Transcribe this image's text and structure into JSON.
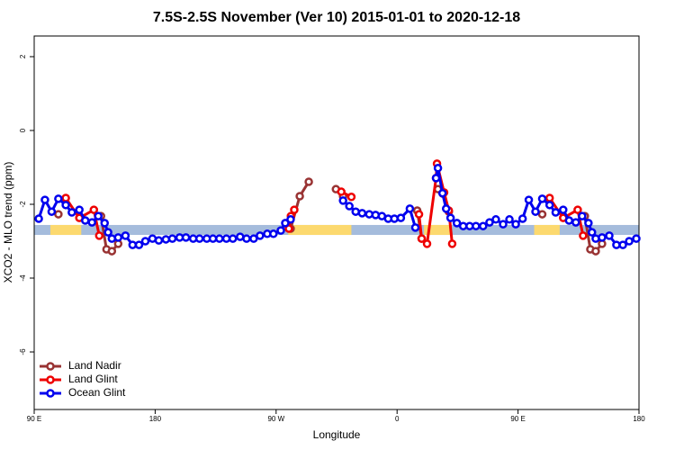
{
  "chart_data": {
    "type": "line",
    "title": "7.5S-2.5S November (Ver 10)   2015-01-01 to 2020-12-18",
    "x_label": "Longitude",
    "y_label": "XCO2 - MLO trend (ppm)",
    "xlim": [
      90,
      540
    ],
    "ylim": [
      -7.56,
      2.56
    ],
    "xticks": [
      {
        "value": 90,
        "label": "90 E"
      },
      180,
      {
        "value": 270,
        "label": "90 W"
      },
      {
        "value": 360,
        "label": "0"
      },
      {
        "value": 450,
        "label": "90 E"
      },
      {
        "value": 540,
        "label": "180"
      }
    ],
    "yticks": [
      2,
      0,
      -2,
      -4,
      -6
    ],
    "band": [
      -2.83,
      -2.56
    ],
    "band_color": "#a5bcdc",
    "land_spans": [
      [
        102,
        125
      ],
      [
        279,
        326
      ],
      [
        380,
        400
      ],
      [
        462,
        481
      ]
    ],
    "land_color": "#fcd96f",
    "legend": "bottom-left",
    "series": [
      {
        "name": "Land Nadir",
        "color": "#993333",
        "x": [
          108,
          110,
          139.7,
          143.8,
          147.8,
          152.5,
          200,
          280.8,
          287.6,
          294.3,
          300,
          314.5,
          319.8,
          350,
          375,
          378.3,
          385,
          390.4,
          394,
          398.5,
          420,
          468,
          470,
          499.7,
          503.8,
          507.8,
          512.5
        ],
        "values": [
          -2.27,
          null,
          -2.32,
          -3.22,
          -3.27,
          -3.07,
          null,
          -2.66,
          -1.78,
          -1.39,
          null,
          -1.59,
          -1.78,
          null,
          -2.17,
          -2.93,
          null,
          -1.59,
          -1.71,
          -2.2,
          null,
          -2.27,
          null,
          -2.32,
          -3.22,
          -3.27,
          -3.07
        ]
      },
      {
        "name": "Land Glint",
        "color": "#ee0000",
        "x": [
          113.5,
          123.6,
          134.4,
          138.4,
          200,
          279.5,
          281,
          283.5,
          300,
          318.5,
          326,
          350,
          376.3,
          378.3,
          382.3,
          389,
          389.7,
          395,
          398.5,
          401,
          420,
          473.5,
          483.6,
          494.4,
          498.4
        ],
        "values": [
          -1.83,
          -2.37,
          -2.15,
          -2.85,
          null,
          -2.66,
          -2.32,
          -2.15,
          null,
          -1.66,
          -1.8,
          null,
          -2.27,
          -2.93,
          -3.07,
          -1.29,
          -0.9,
          -1.68,
          -2.17,
          -3.07,
          null,
          -1.83,
          -2.37,
          -2.15,
          -2.85
        ]
      },
      {
        "name": "Ocean Glint",
        "color": "#0000ee",
        "x": [
          93.4,
          98,
          103,
          108,
          113.5,
          118,
          123.6,
          128,
          133,
          137.7,
          142.4,
          145,
          147.8,
          152.5,
          157.9,
          163.2,
          168,
          172.7,
          178,
          182.7,
          188,
          192.8,
          198.2,
          202.9,
          208.3,
          213,
          218.4,
          223,
          227.8,
          233,
          237.8,
          243.2,
          248,
          253.3,
          258,
          263.4,
          268,
          273.5,
          276.8,
          280.8,
          300,
          319.8,
          324.5,
          329.2,
          334,
          339.3,
          344,
          348.7,
          353.4,
          358,
          362.8,
          369.5,
          373.6,
          380,
          389,
          390.4,
          393.8,
          396.5,
          399.8,
          404.5,
          409.2,
          414,
          418.7,
          424,
          428.8,
          433.5,
          438.9,
          443.6,
          448.3,
          453.4,
          458,
          463,
          468,
          473.5,
          478,
          483.6,
          488,
          493,
          497.7,
          502.4,
          505,
          507.8,
          512.5,
          517.9,
          523.2,
          528,
          532.7,
          538
        ],
        "values": [
          -2.39,
          -1.88,
          -2.2,
          -1.85,
          -2.02,
          -2.22,
          -2.15,
          -2.44,
          -2.49,
          -2.32,
          -2.51,
          -2.76,
          -2.93,
          -2.9,
          -2.85,
          -3.1,
          -3.1,
          -3.0,
          -2.93,
          -2.98,
          -2.95,
          -2.93,
          -2.9,
          -2.9,
          -2.93,
          -2.93,
          -2.93,
          -2.93,
          -2.93,
          -2.93,
          -2.93,
          -2.88,
          -2.93,
          -2.93,
          -2.85,
          -2.8,
          -2.8,
          -2.71,
          -2.51,
          -2.41,
          null,
          -1.9,
          -2.05,
          -2.2,
          -2.24,
          -2.27,
          -2.29,
          -2.32,
          -2.39,
          -2.39,
          -2.37,
          -2.12,
          -2.63,
          null,
          -1.29,
          -1.02,
          -1.7,
          -2.12,
          -2.37,
          -2.51,
          -2.59,
          -2.59,
          -2.59,
          -2.59,
          -2.49,
          -2.41,
          -2.54,
          -2.41,
          -2.54,
          -2.39,
          -1.88,
          -2.2,
          -1.85,
          -2.02,
          -2.22,
          -2.15,
          -2.44,
          -2.49,
          -2.32,
          -2.51,
          -2.76,
          -2.93,
          -2.9,
          -2.85,
          -3.1,
          -3.1,
          -3.0,
          -2.93
        ]
      }
    ]
  }
}
